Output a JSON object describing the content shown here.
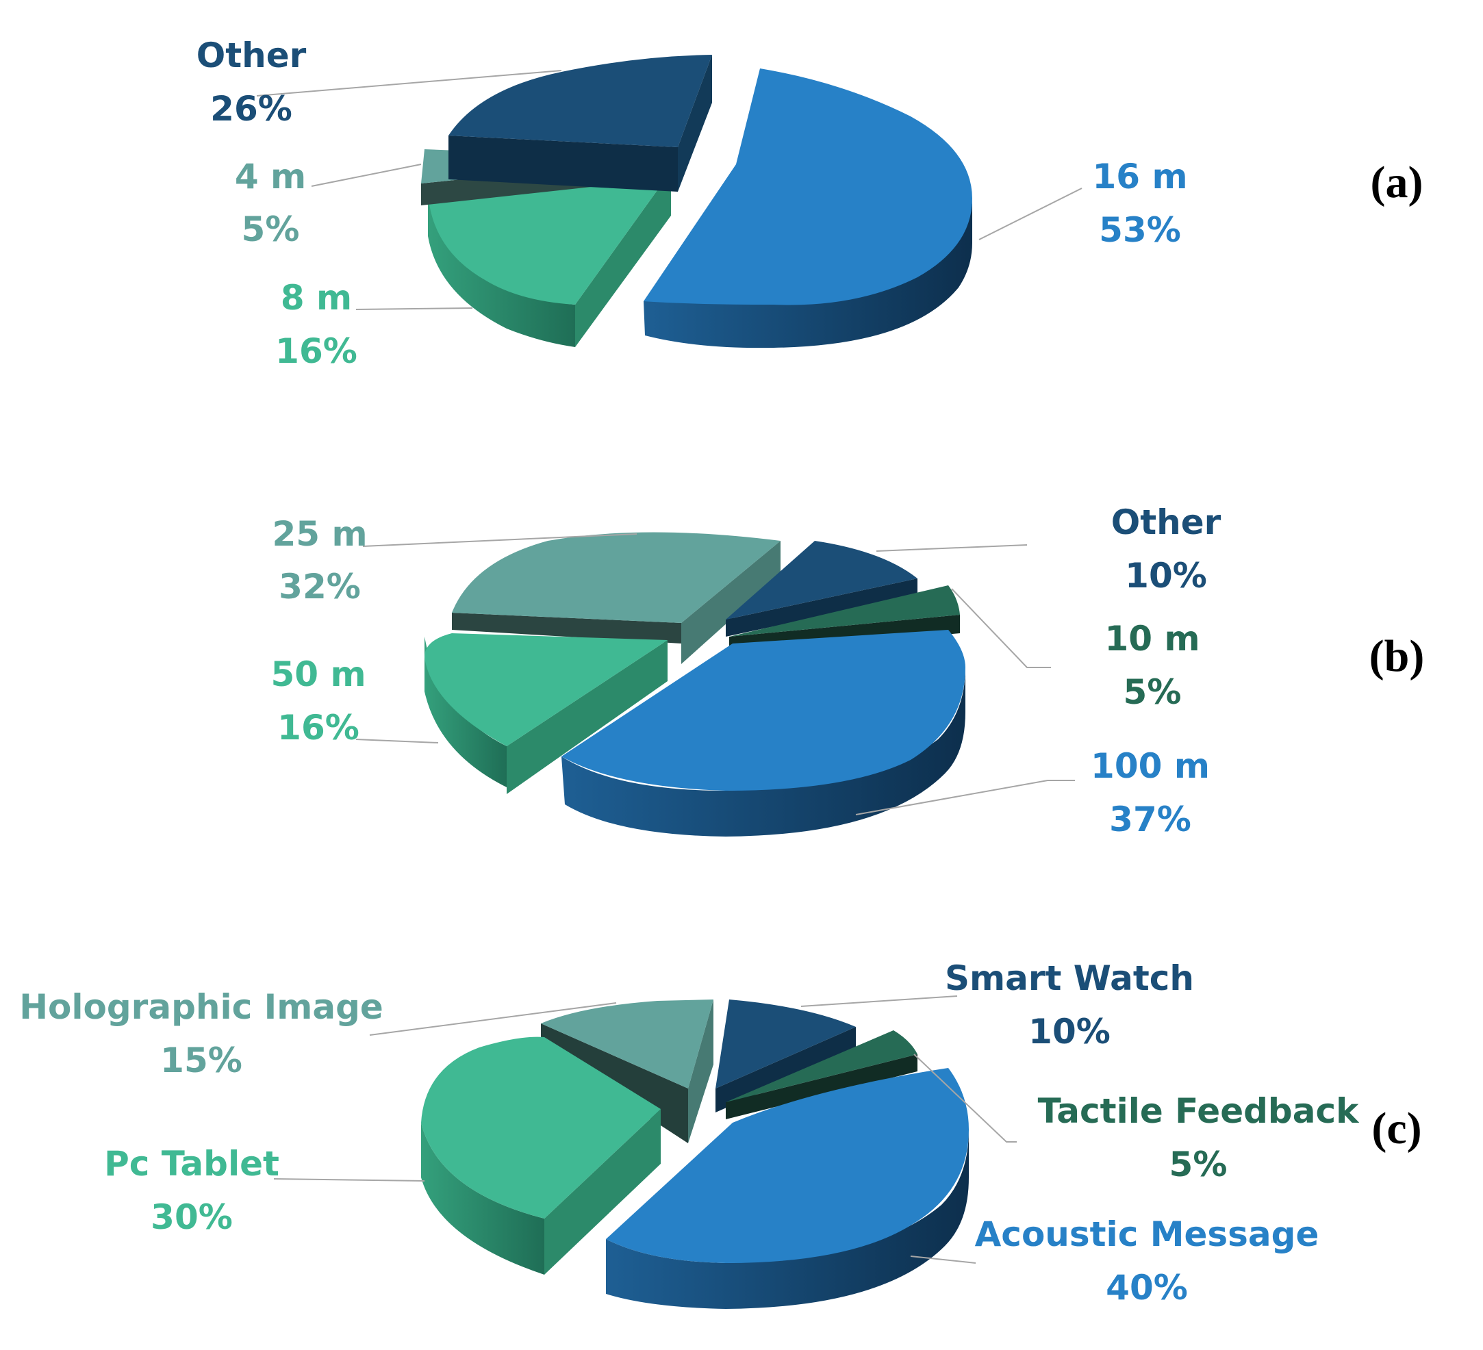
{
  "colors": {
    "blue": "#2781c7",
    "navy": "#1b4e77",
    "green": "#40b993",
    "teal": "#62a39c",
    "darkgreen": "#266b55"
  },
  "chart_data": [
    {
      "type": "pie",
      "panel": "(a)",
      "style": "3d exploded",
      "slices": [
        {
          "label": "16 m",
          "value": 53,
          "pct_text": "53%",
          "color": "blue"
        },
        {
          "label": "8 m",
          "value": 16,
          "pct_text": "16%",
          "color": "green"
        },
        {
          "label": "4 m",
          "value": 5,
          "pct_text": "5%",
          "color": "teal"
        },
        {
          "label": "Other",
          "value": 26,
          "pct_text": "26%",
          "color": "navy"
        }
      ]
    },
    {
      "type": "pie",
      "panel": "(b)",
      "style": "3d exploded",
      "slices": [
        {
          "label": "Other",
          "value": 10,
          "pct_text": "10%",
          "color": "navy"
        },
        {
          "label": "10 m",
          "value": 5,
          "pct_text": "5%",
          "color": "darkgreen"
        },
        {
          "label": "100 m",
          "value": 37,
          "pct_text": "37%",
          "color": "blue"
        },
        {
          "label": "50 m",
          "value": 16,
          "pct_text": "16%",
          "color": "green"
        },
        {
          "label": "25 m",
          "value": 32,
          "pct_text": "32%",
          "color": "teal"
        }
      ]
    },
    {
      "type": "pie",
      "panel": "(c)",
      "style": "3d exploded",
      "slices": [
        {
          "label": "Smart Watch",
          "value": 10,
          "pct_text": "10%",
          "color": "navy"
        },
        {
          "label": "Tactile Feedback",
          "value": 5,
          "pct_text": "5%",
          "color": "darkgreen"
        },
        {
          "label": "Acoustic Message",
          "value": 40,
          "pct_text": "40%",
          "color": "blue"
        },
        {
          "label": "Pc Tablet",
          "value": 30,
          "pct_text": "30%",
          "color": "green"
        },
        {
          "label": "Holographic Image",
          "value": 15,
          "pct_text": "15%",
          "color": "teal"
        }
      ]
    }
  ]
}
